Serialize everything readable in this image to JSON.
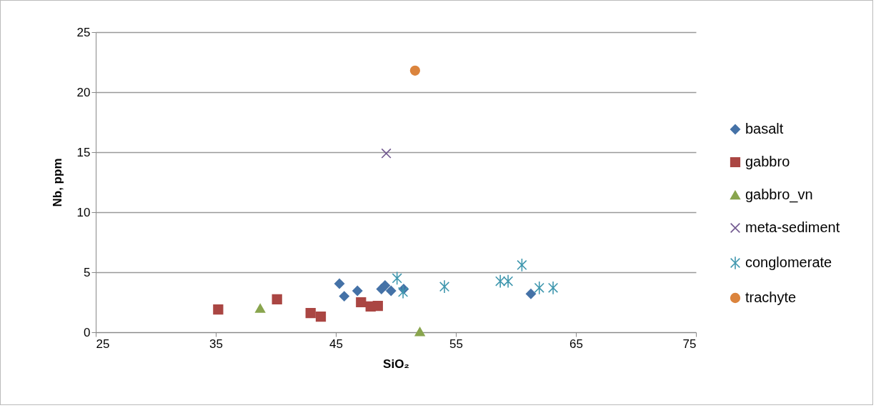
{
  "chart_data": {
    "type": "scatter",
    "xlabel": "SiO₂",
    "ylabel": "Nb, ppm",
    "xlim": [
      25,
      75
    ],
    "xticks": [
      25,
      35,
      45,
      55,
      65,
      75
    ],
    "ylim": [
      0,
      25
    ],
    "yticks": [
      0,
      5,
      10,
      15,
      20,
      25
    ],
    "grid": "y",
    "legend": "right",
    "series": [
      {
        "name": "basalt",
        "color": "#4572a7",
        "marker": "diamond",
        "x": [
          45.3,
          45.7,
          46.8,
          48.8,
          49.1,
          49.6,
          50.65,
          61.25
        ],
        "values": [
          4.05,
          3.0,
          3.45,
          3.6,
          3.9,
          3.45,
          3.6,
          3.2
        ]
      },
      {
        "name": "gabbro",
        "color": "#aa4643",
        "marker": "square",
        "x": [
          35.2,
          40.1,
          42.9,
          43.75,
          47.1,
          47.9,
          48.5
        ],
        "values": [
          1.9,
          2.75,
          1.6,
          1.3,
          2.5,
          2.15,
          2.2
        ]
      },
      {
        "name": "gabbro_vn",
        "color": "#89a54e",
        "marker": "triangle",
        "x": [
          38.7,
          52.0
        ],
        "values": [
          2.0,
          0.05
        ]
      },
      {
        "name": "meta-sediment",
        "color": "#71588f",
        "marker": "cross",
        "x": [
          49.2
        ],
        "values": [
          14.9
        ]
      },
      {
        "name": "conglomerate",
        "color": "#4198af",
        "x": [
          50.1,
          50.6,
          54.05,
          58.7,
          59.35,
          60.5,
          61.95,
          63.1
        ],
        "values": [
          4.5,
          3.35,
          3.8,
          4.25,
          4.25,
          5.6,
          3.7,
          3.7
        ]
      },
      {
        "name": "trachyte",
        "color": "#db843d",
        "marker": "circle",
        "x": [
          51.6
        ],
        "values": [
          21.8
        ]
      }
    ]
  }
}
